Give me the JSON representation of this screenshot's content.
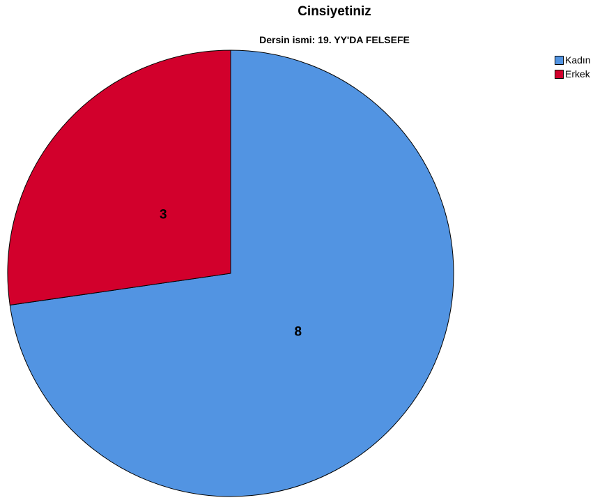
{
  "chart_data": {
    "type": "pie",
    "title": "Cinsiyetiniz",
    "subtitle": "Dersin ismi: 19. YY'DA FELSEFE",
    "categories": [
      "Kadın",
      "Erkek"
    ],
    "values": [
      8,
      3
    ],
    "colors": [
      "#5294e2",
      "#d2002c"
    ],
    "data_labels": [
      "8",
      "3"
    ],
    "legend_position": "top-right",
    "start": "12 o'clock",
    "direction": "clockwise"
  }
}
